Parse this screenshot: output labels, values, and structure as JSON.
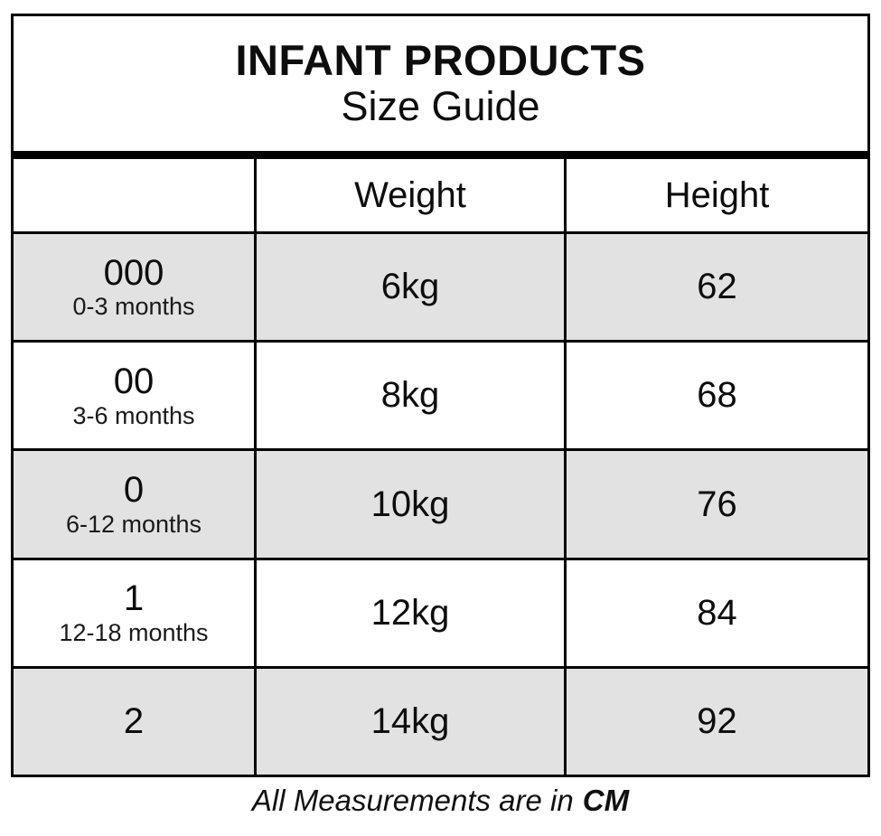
{
  "title": {
    "line1": "INFANT PRODUCTS",
    "line2": "Size Guide"
  },
  "table": {
    "columns": [
      "",
      "Weight",
      "Height"
    ],
    "rows": [
      {
        "size": "000",
        "age": "0-3 months",
        "weight": "6kg",
        "height": "62",
        "shaded": true
      },
      {
        "size": "00",
        "age": "3-6 months",
        "weight": "8kg",
        "height": "68",
        "shaded": false
      },
      {
        "size": "0",
        "age": "6-12 months",
        "weight": "10kg",
        "height": "76",
        "shaded": true
      },
      {
        "size": "1",
        "age": "12-18 months",
        "weight": "12kg",
        "height": "84",
        "shaded": false
      },
      {
        "size": "2",
        "age": "",
        "weight": "14kg",
        "height": "92",
        "shaded": true
      }
    ]
  },
  "footer": {
    "prefix": "All Measurements are in",
    "unit": "CM"
  },
  "colors": {
    "row_shaded": "#e2e2e2",
    "border": "#000000",
    "background": "#ffffff",
    "text": "#0d0d0d"
  }
}
